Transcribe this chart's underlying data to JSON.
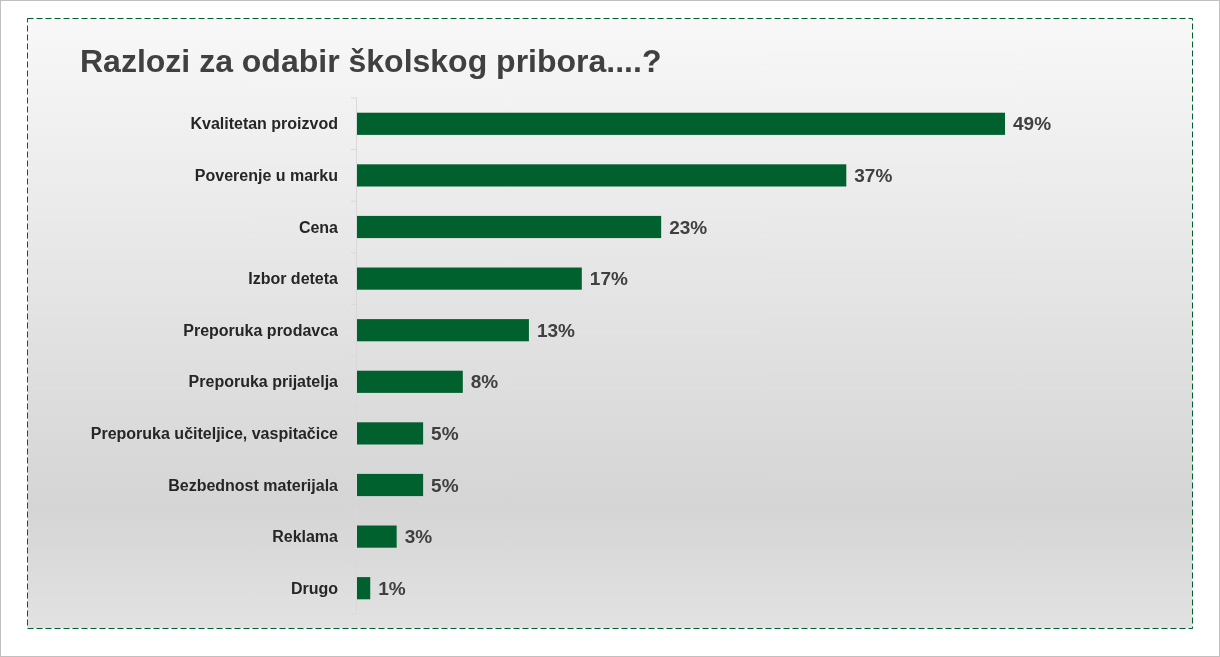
{
  "chart_data": {
    "type": "bar",
    "orientation": "horizontal",
    "title": "Razlozi za odabir školskog pribora....?",
    "categories": [
      "Kvalitetan proizvod",
      "Poverenje u marku",
      "Cena",
      "Izbor deteta",
      "Preporuka prodavca",
      "Preporuka prijatelja",
      "Preporuka učiteljice, vaspitačice",
      "Bezbednost materijala",
      "Reklama",
      "Drugo"
    ],
    "values": [
      49,
      37,
      23,
      17,
      13,
      8,
      5,
      5,
      3,
      1
    ],
    "value_labels": [
      "49%",
      "37%",
      "23%",
      "17%",
      "13%",
      "8%",
      "5%",
      "5%",
      "3%",
      "1%"
    ],
    "color": "#00612e"
  }
}
